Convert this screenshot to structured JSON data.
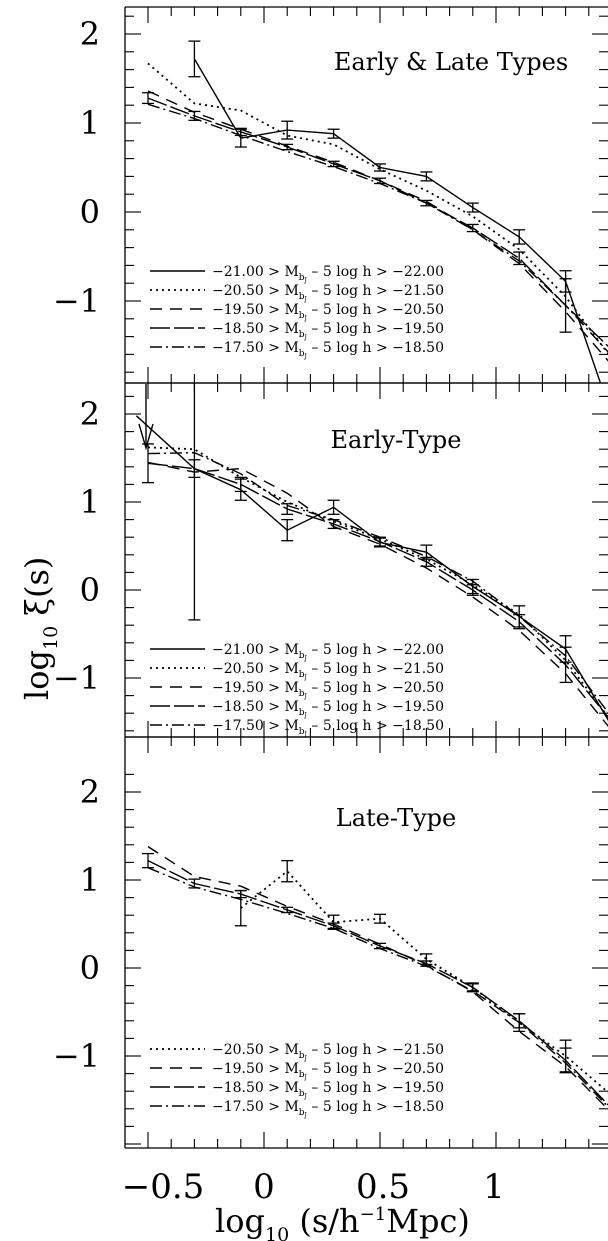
{
  "figure": {
    "xlabel_main": "log",
    "xlabel_sub": "10",
    "xlabel_rest": " (s/h",
    "xlabel_sup": "−1",
    "xlabel_end": "Mpc)",
    "ylabel_main": "log",
    "ylabel_sub": "10",
    "ylabel_rest": " ξ(s)",
    "legend_prefix": ">  M",
    "legend_sub": "b",
    "legend_subsub": "J",
    "legend_suffix": "– 5 log h >",
    "x_tick_labels": [
      "−0.5",
      "0",
      "0.5",
      "1"
    ],
    "y_tick_labels": [
      "2",
      "1",
      "0",
      "−1"
    ]
  },
  "chart_data": [
    {
      "type": "line",
      "title": "Early & Late Types",
      "xlim": [
        -0.62,
        1.42
      ],
      "ylim": [
        -1.95,
        2.3
      ],
      "legend_position": "bottom-left",
      "series": [
        {
          "name": "−21.00 > M_bJ − 5 log h > −22.00",
          "left": "−21.00",
          "right": "−22.00",
          "style": "solid",
          "x": [
            -0.3,
            -0.1,
            0.1,
            0.3,
            0.5,
            0.7,
            0.9,
            1.1,
            1.3,
            1.5
          ],
          "y": [
            1.72,
            0.83,
            0.92,
            0.88,
            0.5,
            0.4,
            0.05,
            -0.28,
            -0.78,
            -2.3
          ],
          "err": [
            0.2,
            0.1,
            0.1,
            0.05,
            0.04,
            0.05,
            0.05,
            0.08,
            0.12,
            0
          ]
        },
        {
          "name": "−20.50 > M_bJ − 5 log h > −21.50",
          "left": "−20.50",
          "right": "−21.50",
          "style": "dotted",
          "x": [
            -0.5,
            -0.3,
            -0.1,
            0.1,
            0.3,
            0.5,
            0.7,
            0.9,
            1.1,
            1.3,
            1.5
          ],
          "y": [
            1.67,
            1.22,
            1.14,
            0.86,
            0.76,
            0.48,
            0.24,
            -0.05,
            -0.42,
            -0.95,
            -1.65
          ]
        },
        {
          "name": "−19.50 > M_bJ − 5 log h > −20.50",
          "left": "−19.50",
          "right": "−20.50",
          "style": "dashed",
          "x": [
            -0.5,
            -0.3,
            -0.1,
            0.1,
            0.3,
            0.5,
            0.7,
            0.9,
            1.1,
            1.3,
            1.5
          ],
          "y": [
            1.36,
            1.12,
            0.93,
            0.74,
            0.56,
            0.35,
            0.12,
            -0.2,
            -0.58,
            -1.12,
            -1.72
          ]
        },
        {
          "name": "−18.50 > M_bJ − 5 log h > −19.50",
          "left": "−18.50",
          "right": "−19.50",
          "style": "longdash",
          "x": [
            -0.5,
            -0.3,
            -0.1,
            0.1,
            0.3,
            0.5,
            0.7,
            0.9,
            1.1,
            1.3,
            1.5
          ],
          "y": [
            1.28,
            1.08,
            0.9,
            0.73,
            0.54,
            0.35,
            0.1,
            -0.18,
            -0.52,
            -1.05,
            -1.55
          ],
          "err": [
            0.06,
            0.05,
            0.04,
            0.03,
            0.03,
            0.03,
            0.03,
            0.04,
            0.07,
            0.3,
            0
          ]
        },
        {
          "name": "−17.50 > M_bJ − 5 log h > −18.50",
          "left": "−17.50",
          "right": "−18.50",
          "style": "dashdot",
          "x": [
            -0.5,
            -0.3,
            -0.1,
            0.1,
            0.3,
            0.5,
            0.7,
            0.9,
            1.1,
            1.3,
            1.5
          ],
          "y": [
            1.21,
            1.05,
            0.86,
            0.68,
            0.51,
            0.32,
            0.1,
            -0.2,
            -0.55,
            -1.05,
            -1.62
          ]
        }
      ]
    },
    {
      "type": "line",
      "title": "Early-Type",
      "xlim": [
        -0.62,
        1.42
      ],
      "ylim": [
        -1.65,
        2.3
      ],
      "legend_position": "bottom-left",
      "series": [
        {
          "name": "−21.00 > M_bJ − 5 log h > −22.00",
          "left": "−21.00",
          "right": "−22.00",
          "style": "solid",
          "x": [
            -0.55,
            -0.3,
            -0.1,
            0.1,
            0.3,
            0.5,
            0.7,
            0.9,
            1.1,
            1.3,
            1.5
          ],
          "y": [
            1.98,
            1.38,
            1.14,
            0.68,
            0.94,
            0.54,
            0.43,
            0.04,
            -0.3,
            -0.67,
            -1.55
          ],
          "err": [
            0,
            1.72,
            0.12,
            0.12,
            0.08,
            0.05,
            0.08,
            0.08,
            0.12,
            0.15,
            0
          ]
        },
        {
          "name": "−20.50 > M_bJ − 5 log h > −21.50",
          "left": "−20.50",
          "right": "−21.50",
          "style": "dotted",
          "x": [
            -0.5,
            -0.3,
            -0.1,
            0.1,
            0.3,
            0.5,
            0.7,
            0.9,
            1.1,
            1.3,
            1.5
          ],
          "y": [
            1.62,
            1.6,
            1.28,
            1.0,
            0.78,
            0.58,
            0.35,
            0.06,
            -0.28,
            -0.8,
            -1.5
          ]
        },
        {
          "name": "−19.50 > M_bJ − 5 log h > −20.50",
          "left": "−19.50",
          "right": "−20.50",
          "style": "dashed",
          "x": [
            -0.5,
            -0.3,
            -0.1,
            0.1,
            0.3,
            0.5,
            0.7,
            0.9,
            1.1,
            1.3,
            1.5
          ],
          "y": [
            1.45,
            1.34,
            1.38,
            1.1,
            0.72,
            0.52,
            0.25,
            -0.08,
            -0.46,
            -0.95,
            -1.6
          ]
        },
        {
          "name": "−18.50 > M_bJ − 5 log h > −19.50",
          "left": "−18.50",
          "right": "−19.50",
          "style": "longdash",
          "x": [
            -0.5,
            -0.3,
            -0.1,
            0.1,
            0.3,
            0.5,
            0.7,
            0.9,
            1.1,
            1.3,
            1.5
          ],
          "y": [
            1.44,
            1.38,
            1.2,
            0.92,
            0.75,
            0.55,
            0.32,
            0.0,
            -0.36,
            -0.85,
            -1.5
          ],
          "err": [
            0.22,
            0.1,
            0.08,
            0.06,
            0.05,
            0.05,
            0.05,
            0.06,
            0.08,
            0.2,
            0
          ]
        },
        {
          "name": "−17.50 > M_bJ − 5 log h > −18.50",
          "left": "−17.50",
          "right": "−18.50",
          "style": "dashdot",
          "x": [
            -0.5,
            -0.3,
            -0.1,
            0.1,
            0.3,
            0.5,
            0.7,
            0.9,
            1.1,
            1.3,
            1.5
          ],
          "y": [
            1.55,
            1.56,
            1.32,
            0.96,
            0.8,
            0.6,
            0.38,
            0.1,
            -0.3,
            -0.75,
            -1.45
          ]
        }
      ]
    },
    {
      "type": "line",
      "title": "Late-Type",
      "xlim": [
        -0.62,
        1.42
      ],
      "ylim": [
        -1.95,
        2.3
      ],
      "legend_position": "bottom-left",
      "series": [
        {
          "name": "−20.50 > M_bJ − 5 log h > −21.50",
          "left": "−20.50",
          "right": "−21.50",
          "style": "dotted",
          "x": [
            -0.1,
            0.1,
            0.3,
            0.5,
            0.7,
            0.9,
            1.1,
            1.3,
            1.5
          ],
          "y": [
            0.68,
            1.1,
            0.52,
            0.56,
            0.1,
            -0.22,
            -0.62,
            -1.0,
            -1.45
          ],
          "err": [
            0.2,
            0.12,
            0.08,
            0.05,
            0.06,
            0.05,
            0.1,
            0.18,
            0
          ]
        },
        {
          "name": "−19.50 > M_bJ − 5 log h > −20.50",
          "left": "−19.50",
          "right": "−20.50",
          "style": "dashed",
          "x": [
            -0.5,
            -0.3,
            -0.1,
            0.1,
            0.3,
            0.5,
            0.7,
            0.9,
            1.1,
            1.3,
            1.5
          ],
          "y": [
            1.38,
            1.04,
            0.93,
            0.7,
            0.5,
            0.27,
            0.03,
            -0.27,
            -0.72,
            -1.12,
            -1.65
          ]
        },
        {
          "name": "−18.50 > M_bJ − 5 log h > −19.50",
          "left": "−18.50",
          "right": "−19.50",
          "style": "longdash",
          "x": [
            -0.5,
            -0.3,
            -0.1,
            0.1,
            0.3,
            0.5,
            0.7,
            0.9,
            1.1,
            1.3,
            1.5
          ],
          "y": [
            1.22,
            0.96,
            0.84,
            0.66,
            0.48,
            0.25,
            0.05,
            -0.22,
            -0.6,
            -1.05,
            -1.6
          ],
          "err": [
            0.08,
            0.05,
            0.04,
            0.03,
            0.03,
            0.03,
            0.03,
            0.04,
            0.08,
            0.14,
            0
          ]
        },
        {
          "name": "−17.50 > M_bJ − 5 log h > −18.50",
          "left": "−17.50",
          "right": "−18.50",
          "style": "dashdot",
          "x": [
            -0.5,
            -0.3,
            -0.1,
            0.1,
            0.3,
            0.5,
            0.7,
            0.9,
            1.1,
            1.3,
            1.5
          ],
          "y": [
            1.14,
            0.92,
            0.78,
            0.62,
            0.45,
            0.22,
            0.02,
            -0.26,
            -0.62,
            -1.08,
            -1.62
          ]
        }
      ]
    }
  ]
}
